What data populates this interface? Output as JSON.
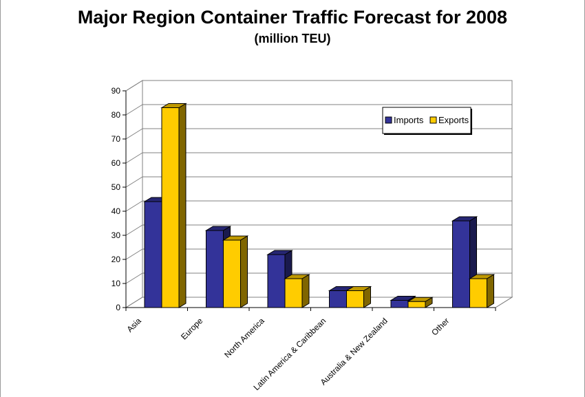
{
  "chart_data": {
    "type": "bar",
    "title": "Major Region Container Traffic Forecast for 2008",
    "subtitle": "(million TEU)",
    "xlabel": "",
    "ylabel": "",
    "ylim": [
      0,
      90
    ],
    "yticks": [
      0,
      10,
      20,
      30,
      40,
      50,
      60,
      70,
      80,
      90
    ],
    "grid": true,
    "legend_position": "top-right",
    "categories": [
      "Asia",
      "Europe",
      "North America",
      "Latin America & Caribbean",
      "Australia & New Zealand",
      "Other"
    ],
    "series": [
      {
        "name": "Imports",
        "color": "#333399",
        "values": [
          44,
          32,
          22,
          7,
          3,
          36
        ]
      },
      {
        "name": "Exports",
        "color": "#ffcc00",
        "values": [
          83,
          28,
          12,
          7,
          2.5,
          12
        ]
      }
    ]
  }
}
